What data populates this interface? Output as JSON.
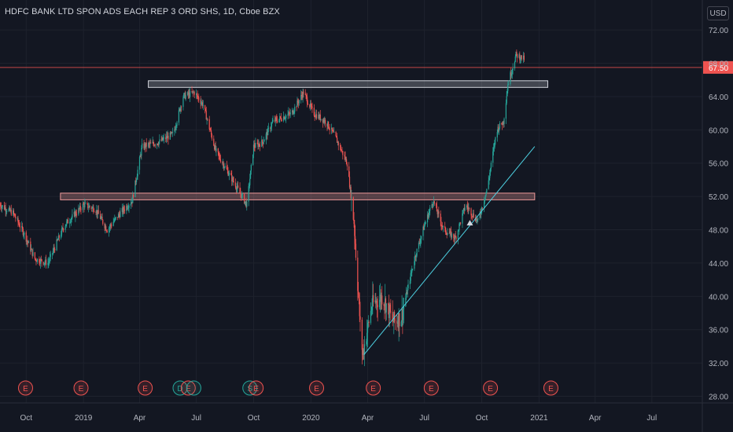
{
  "title": "HDFC BANK LTD SPON ADS EACH REP 3 ORD SHS, 1D, Cboe BZX",
  "currency": "USD",
  "last_price_label": "67.50",
  "colors": {
    "background": "#131722",
    "up": "#26a69a",
    "down": "#ef5350",
    "text": "#b2b5be",
    "zone_fill": "#d1d4dc",
    "zone_outline": "#ef9a9a",
    "trendline": "#4dd0e1",
    "price_line": "#ef5350"
  },
  "chart_data": {
    "type": "candlestick",
    "x_ticks": [
      "Oct",
      "2019",
      "Apr",
      "Jul",
      "Oct",
      "2020",
      "Apr",
      "Jul",
      "Oct",
      "2021",
      "Apr",
      "Jul"
    ],
    "y_ticks": [
      "72.00",
      "68.00",
      "64.00",
      "60.00",
      "56.00",
      "52.00",
      "48.00",
      "44.00",
      "40.00",
      "36.00",
      "32.00",
      "28.00"
    ],
    "ylim": [
      27.2,
      75.6
    ],
    "xlim": [
      "2018-08-20",
      "2021-09-20"
    ],
    "last_price": 67.5,
    "series_path": [
      [
        "2018-08-20",
        51.0
      ],
      [
        "2018-09-10",
        50.0
      ],
      [
        "2018-09-28",
        47.5
      ],
      [
        "2018-10-15",
        44.5
      ],
      [
        "2018-11-05",
        44.0
      ],
      [
        "2018-12-01",
        48.5
      ],
      [
        "2019-01-01",
        51.0
      ],
      [
        "2019-01-20",
        50.5
      ],
      [
        "2019-02-08",
        48.0
      ],
      [
        "2019-03-01",
        50.0
      ],
      [
        "2019-03-20",
        51.5
      ],
      [
        "2019-04-05",
        58.0
      ],
      [
        "2019-05-01",
        58.5
      ],
      [
        "2019-05-25",
        59.5
      ],
      [
        "2019-06-10",
        64.0
      ],
      [
        "2019-06-28",
        64.5
      ],
      [
        "2019-07-12",
        63.0
      ],
      [
        "2019-08-01",
        57.5
      ],
      [
        "2019-08-28",
        54.0
      ],
      [
        "2019-09-20",
        51.0
      ],
      [
        "2019-10-01",
        58.0
      ],
      [
        "2019-10-15",
        58.5
      ],
      [
        "2019-11-01",
        61.0
      ],
      [
        "2019-12-01",
        62.0
      ],
      [
        "2019-12-20",
        64.5
      ],
      [
        "2020-01-05",
        62.0
      ],
      [
        "2020-01-25",
        61.0
      ],
      [
        "2020-02-10",
        59.0
      ],
      [
        "2020-02-28",
        56.0
      ],
      [
        "2020-03-10",
        49.0
      ],
      [
        "2020-03-20",
        36.5
      ],
      [
        "2020-03-24",
        33.0
      ],
      [
        "2020-04-08",
        39.0
      ],
      [
        "2020-04-25",
        40.0
      ],
      [
        "2020-05-12",
        37.0
      ],
      [
        "2020-05-25",
        37.5
      ],
      [
        "2020-06-15",
        44.5
      ],
      [
        "2020-07-01",
        48.5
      ],
      [
        "2020-07-15",
        51.5
      ],
      [
        "2020-08-01",
        48.0
      ],
      [
        "2020-08-20",
        47.0
      ],
      [
        "2020-09-05",
        51.0
      ],
      [
        "2020-09-25",
        49.0
      ],
      [
        "2020-10-10",
        53.0
      ],
      [
        "2020-10-25",
        60.0
      ],
      [
        "2020-11-05",
        61.0
      ],
      [
        "2020-11-12",
        65.5
      ],
      [
        "2020-11-25",
        69.0
      ],
      [
        "2020-12-08",
        68.5
      ]
    ],
    "zones": [
      {
        "from": "2019-04-15",
        "to": "2021-01-15",
        "low": 65.1,
        "high": 65.9,
        "style": "light"
      },
      {
        "from": "2018-11-25",
        "to": "2020-12-25",
        "low": 51.6,
        "high": 52.4,
        "style": "pink"
      }
    ],
    "price_line": {
      "value": 67.5
    },
    "trendline": [
      [
        "2020-03-26",
        33.0
      ],
      [
        "2020-12-25",
        58.0
      ]
    ],
    "marker": {
      "date": "2020-09-12",
      "value": 48.8
    },
    "events": [
      {
        "date": "2018-09-30",
        "label": "E"
      },
      {
        "date": "2018-12-28",
        "label": "E"
      },
      {
        "date": "2019-04-10",
        "label": "E"
      },
      {
        "date": "2019-06-05",
        "label": "D"
      },
      {
        "date": "2019-06-18",
        "label": "E"
      },
      {
        "date": "2019-06-27",
        "label": ""
      },
      {
        "date": "2019-09-25",
        "label": "S"
      },
      {
        "date": "2019-10-05",
        "label": "E"
      },
      {
        "date": "2020-01-10",
        "label": "E"
      },
      {
        "date": "2020-04-10",
        "label": "E"
      },
      {
        "date": "2020-07-12",
        "label": "E"
      },
      {
        "date": "2020-10-15",
        "label": "E"
      },
      {
        "date": "2021-01-20",
        "label": "E"
      }
    ]
  }
}
